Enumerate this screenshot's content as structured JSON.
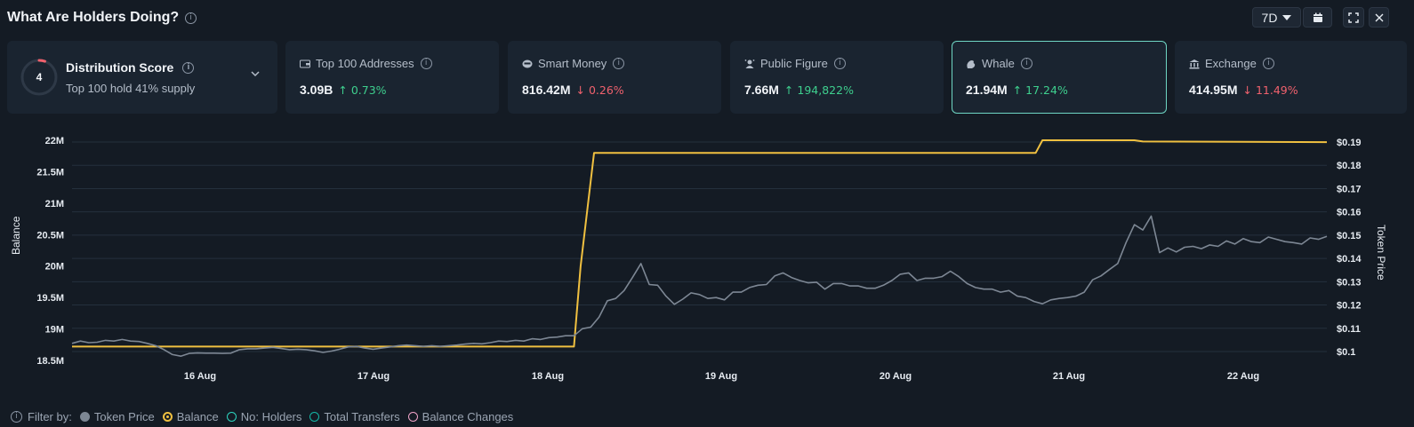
{
  "header": {
    "title": "What Are Holders Doing?",
    "timeframe": "7D"
  },
  "distribution": {
    "score": "4",
    "title": "Distribution Score",
    "subtitle": "Top 100 hold 41% supply"
  },
  "cards": [
    {
      "label": "Top 100 Addresses",
      "value": "3.09B",
      "change": "0.73%",
      "direction": "up",
      "icon": "wallet-icon"
    },
    {
      "label": "Smart Money",
      "value": "816.42M",
      "change": "0.26%",
      "direction": "down",
      "icon": "brain-icon"
    },
    {
      "label": "Public Figure",
      "value": "7.66M",
      "change": "194,822%",
      "direction": "up",
      "icon": "star-person-icon"
    },
    {
      "label": "Whale",
      "value": "21.94M",
      "change": "17.24%",
      "direction": "up",
      "icon": "whale-icon"
    },
    {
      "label": "Exchange",
      "value": "414.95M",
      "change": "11.49%",
      "direction": "down",
      "icon": "bank-icon"
    }
  ],
  "filters": {
    "label": "Filter by:",
    "items": [
      {
        "label": "Token Price",
        "color": "#7d8794"
      },
      {
        "label": "Balance",
        "color": "#f0c040"
      },
      {
        "label": "No: Holders",
        "color": "#2dd4bf"
      },
      {
        "label": "Total Transfers",
        "color": "#14b8a6"
      },
      {
        "label": "Balance Changes",
        "color": "#f0a3c8"
      }
    ]
  },
  "chart_data": {
    "type": "line",
    "ylabel_left": "Balance",
    "ylabel_right": "Token Price",
    "x_ticks": [
      "16 Aug",
      "17 Aug",
      "18 Aug",
      "19 Aug",
      "20 Aug",
      "21 Aug",
      "22 Aug"
    ],
    "y_left_ticks": [
      "22M",
      "21.5M",
      "21M",
      "20.5M",
      "20M",
      "19.5M",
      "19M",
      "18.5M"
    ],
    "y_right_ticks": [
      "$0.19",
      "$0.18",
      "$0.17",
      "$0.16",
      "$0.15",
      "$0.14",
      "$0.13",
      "$0.12",
      "$0.11",
      "$0.1"
    ],
    "ylim_left": [
      18.5,
      22
    ],
    "ylim_right": [
      0.1,
      0.19
    ],
    "xlim": [
      15.0,
      22.5
    ],
    "grid": true,
    "series": [
      {
        "name": "Balance",
        "axis": "left",
        "color": "#f0c040",
        "points": [
          [
            15.0,
            18.72
          ],
          [
            18.0,
            18.72
          ],
          [
            18.04,
            20.0
          ],
          [
            18.12,
            21.8
          ],
          [
            20.76,
            21.8
          ],
          [
            20.8,
            22.0
          ],
          [
            21.35,
            22.0
          ],
          [
            21.4,
            21.98
          ],
          [
            22.5,
            21.97
          ]
        ]
      },
      {
        "name": "Token Price",
        "axis": "right",
        "color": "#7d8794",
        "points": [
          [
            15.0,
            0.1035
          ],
          [
            15.05,
            0.1045
          ],
          [
            15.1,
            0.1038
          ],
          [
            15.15,
            0.104
          ],
          [
            15.2,
            0.1048
          ],
          [
            15.25,
            0.1045
          ],
          [
            15.3,
            0.1052
          ],
          [
            15.35,
            0.1045
          ],
          [
            15.4,
            0.1043
          ],
          [
            15.45,
            0.1035
          ],
          [
            15.5,
            0.1025
          ],
          [
            15.55,
            0.1008
          ],
          [
            15.6,
            0.0987
          ],
          [
            15.65,
            0.098
          ],
          [
            15.7,
            0.0992
          ],
          [
            15.75,
            0.0994
          ],
          [
            15.8,
            0.0993
          ],
          [
            15.85,
            0.0993
          ],
          [
            15.9,
            0.0992
          ],
          [
            15.95,
            0.0993
          ],
          [
            16.0,
            0.1008
          ],
          [
            16.05,
            0.1012
          ],
          [
            16.1,
            0.1012
          ],
          [
            16.15,
            0.1015
          ],
          [
            16.2,
            0.1018
          ],
          [
            16.25,
            0.1013
          ],
          [
            16.3,
            0.1008
          ],
          [
            16.35,
            0.101
          ],
          [
            16.4,
            0.1008
          ],
          [
            16.45,
            0.1003
          ],
          [
            16.5,
            0.0996
          ],
          [
            16.55,
            0.1002
          ],
          [
            16.6,
            0.101
          ],
          [
            16.65,
            0.102
          ],
          [
            16.7,
            0.1022
          ],
          [
            16.75,
            0.1015
          ],
          [
            16.8,
            0.101
          ],
          [
            16.85,
            0.1015
          ],
          [
            16.9,
            0.102
          ],
          [
            16.95,
            0.1025
          ],
          [
            17.0,
            0.1028
          ],
          [
            17.05,
            0.1025
          ],
          [
            17.1,
            0.1022
          ],
          [
            17.15,
            0.1025
          ],
          [
            17.2,
            0.1022
          ],
          [
            17.25,
            0.1025
          ],
          [
            17.3,
            0.1028
          ],
          [
            17.35,
            0.1032
          ],
          [
            17.4,
            0.1035
          ],
          [
            17.45,
            0.1033
          ],
          [
            17.5,
            0.1038
          ],
          [
            17.55,
            0.1045
          ],
          [
            17.6,
            0.1043
          ],
          [
            17.65,
            0.1048
          ],
          [
            17.7,
            0.1045
          ],
          [
            17.75,
            0.1055
          ],
          [
            17.8,
            0.1052
          ],
          [
            17.85,
            0.106
          ],
          [
            17.9,
            0.1062
          ],
          [
            17.95,
            0.1068
          ],
          [
            18.0,
            0.1068
          ],
          [
            18.05,
            0.1098
          ],
          [
            18.1,
            0.1105
          ],
          [
            18.15,
            0.1148
          ],
          [
            18.2,
            0.1218
          ],
          [
            18.25,
            0.1228
          ],
          [
            18.3,
            0.1262
          ],
          [
            18.35,
            0.1318
          ],
          [
            18.4,
            0.1378
          ],
          [
            18.45,
            0.1288
          ],
          [
            18.5,
            0.1285
          ],
          [
            18.55,
            0.1238
          ],
          [
            18.6,
            0.1203
          ],
          [
            18.65,
            0.1225
          ],
          [
            18.7,
            0.1252
          ],
          [
            18.75,
            0.1245
          ],
          [
            18.8,
            0.1228
          ],
          [
            18.85,
            0.1232
          ],
          [
            18.9,
            0.1222
          ],
          [
            18.95,
            0.1255
          ],
          [
            19.0,
            0.1255
          ],
          [
            19.05,
            0.1275
          ],
          [
            19.1,
            0.1285
          ],
          [
            19.15,
            0.1288
          ],
          [
            19.2,
            0.1325
          ],
          [
            19.25,
            0.1338
          ],
          [
            19.3,
            0.1318
          ],
          [
            19.35,
            0.1305
          ],
          [
            19.4,
            0.1295
          ],
          [
            19.45,
            0.1298
          ],
          [
            19.5,
            0.1268
          ],
          [
            19.55,
            0.1292
          ],
          [
            19.6,
            0.1292
          ],
          [
            19.65,
            0.1282
          ],
          [
            19.7,
            0.1282
          ],
          [
            19.75,
            0.1272
          ],
          [
            19.8,
            0.1272
          ],
          [
            19.85,
            0.1285
          ],
          [
            19.9,
            0.1305
          ],
          [
            19.95,
            0.1332
          ],
          [
            20.0,
            0.1338
          ],
          [
            20.05,
            0.1305
          ],
          [
            20.1,
            0.1315
          ],
          [
            20.15,
            0.1315
          ],
          [
            20.2,
            0.1322
          ],
          [
            20.25,
            0.1345
          ],
          [
            20.3,
            0.1322
          ],
          [
            20.35,
            0.1292
          ],
          [
            20.4,
            0.1275
          ],
          [
            20.45,
            0.1268
          ],
          [
            20.5,
            0.1268
          ],
          [
            20.55,
            0.1255
          ],
          [
            20.6,
            0.1262
          ],
          [
            20.65,
            0.1238
          ],
          [
            20.7,
            0.1232
          ],
          [
            20.75,
            0.1215
          ],
          [
            20.8,
            0.1205
          ],
          [
            20.85,
            0.1222
          ],
          [
            20.9,
            0.1228
          ],
          [
            20.95,
            0.1232
          ],
          [
            21.0,
            0.1238
          ],
          [
            21.05,
            0.1255
          ],
          [
            21.1,
            0.1308
          ],
          [
            21.15,
            0.1325
          ],
          [
            21.2,
            0.1352
          ],
          [
            21.25,
            0.1378
          ],
          [
            21.3,
            0.1468
          ],
          [
            21.35,
            0.1545
          ],
          [
            21.4,
            0.1522
          ],
          [
            21.45,
            0.1582
          ],
          [
            21.5,
            0.1425
          ],
          [
            21.55,
            0.1445
          ],
          [
            21.6,
            0.1428
          ],
          [
            21.65,
            0.1448
          ],
          [
            21.7,
            0.1452
          ],
          [
            21.75,
            0.1442
          ],
          [
            21.8,
            0.1458
          ],
          [
            21.85,
            0.1452
          ],
          [
            21.9,
            0.1475
          ],
          [
            21.95,
            0.1462
          ],
          [
            22.0,
            0.1485
          ],
          [
            22.05,
            0.1472
          ],
          [
            22.1,
            0.1468
          ],
          [
            22.15,
            0.1492
          ],
          [
            22.2,
            0.1482
          ],
          [
            22.25,
            0.1472
          ],
          [
            22.3,
            0.1468
          ],
          [
            22.35,
            0.1462
          ],
          [
            22.4,
            0.1488
          ],
          [
            22.45,
            0.1482
          ],
          [
            22.5,
            0.1495
          ]
        ]
      }
    ]
  }
}
